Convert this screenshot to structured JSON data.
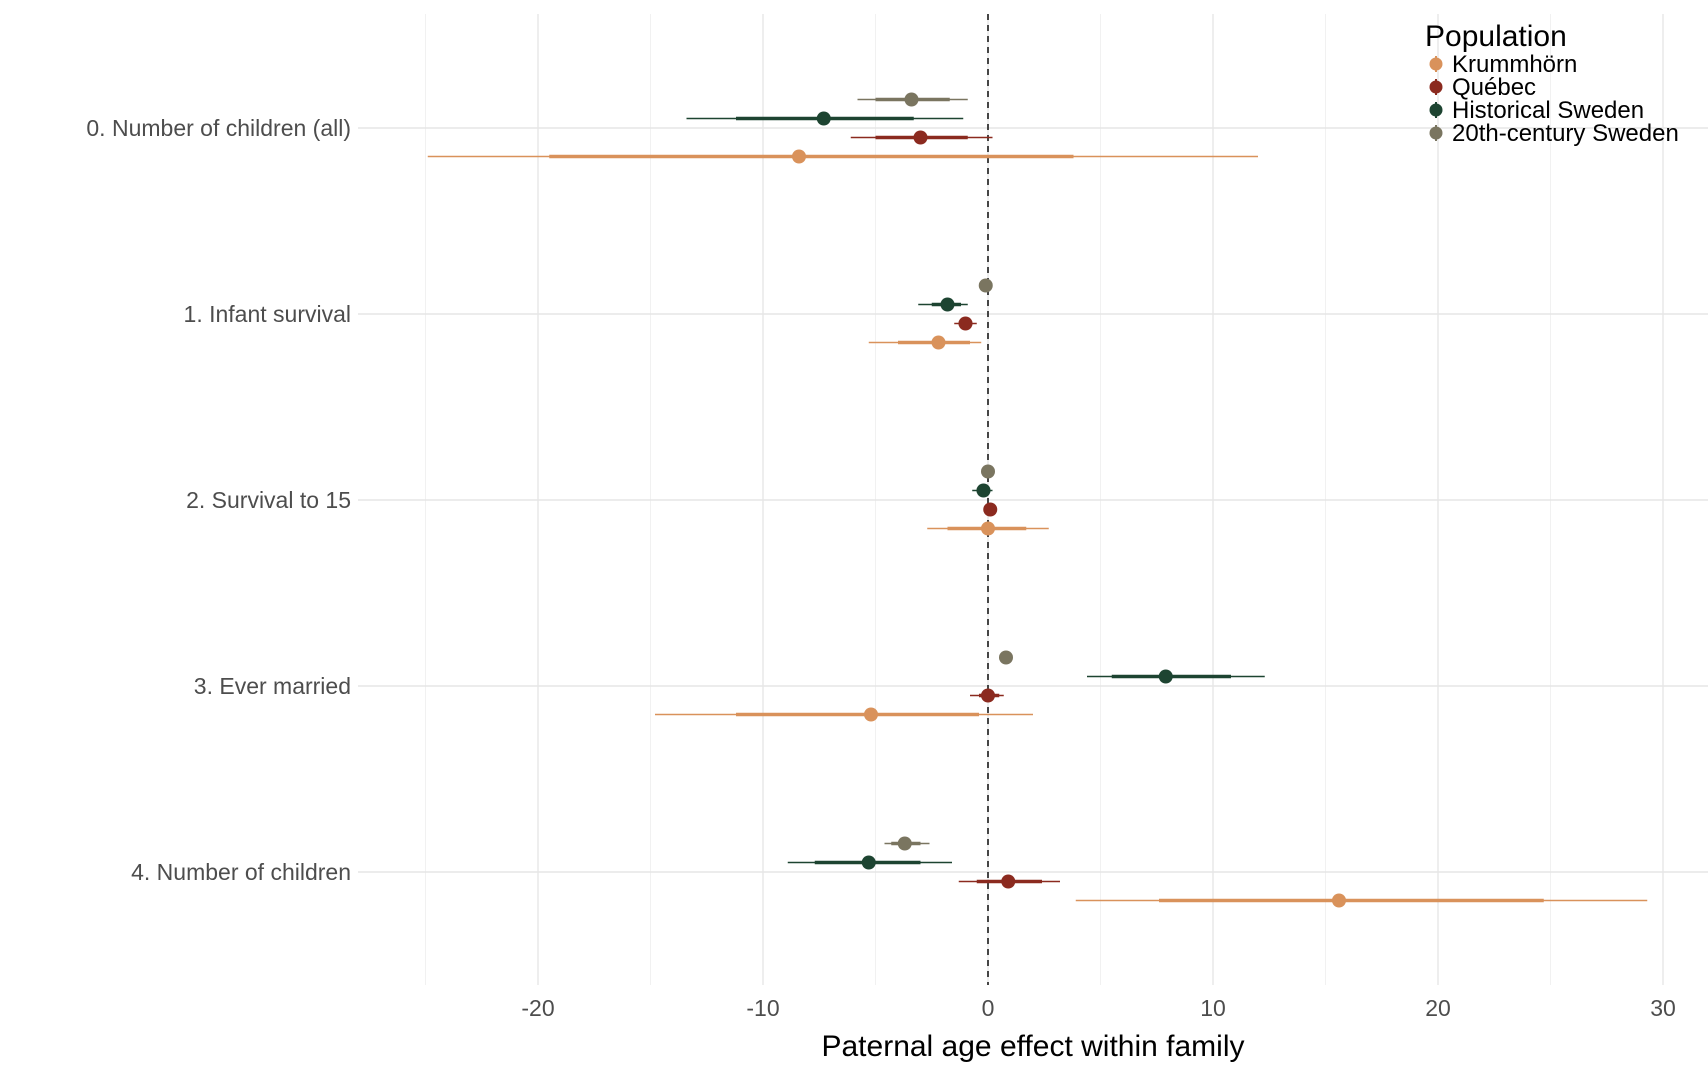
{
  "chart_data": {
    "type": "forest",
    "xlabel": "Paternal age effect within family",
    "xlim": [
      -28,
      32
    ],
    "xticks": [
      -20,
      -10,
      0,
      10,
      20,
      30
    ],
    "x_tick_labels": [
      "-20",
      "-10",
      "0",
      "10",
      "20",
      "30"
    ],
    "reference_line": 0,
    "grid": true,
    "categories": [
      "0. Number of children (all)",
      "1. Infant survival",
      "2. Survival to 15",
      "3. Ever married",
      "4. Number of children"
    ],
    "legend": {
      "title": "Population",
      "position": "top-right"
    },
    "series": [
      {
        "name": "Krummhörn",
        "color": "#D9925B",
        "values": [
          -8.4,
          -2.2,
          0.0,
          -5.2,
          15.6
        ],
        "inner": [
          [
            -19.5,
            3.8
          ],
          [
            -4.0,
            -0.8
          ],
          [
            -1.8,
            1.7
          ],
          [
            -11.2,
            -0.4
          ],
          [
            7.6,
            24.7
          ]
        ],
        "outer": [
          [
            -24.9,
            12.0
          ],
          [
            -5.3,
            -0.3
          ],
          [
            -2.7,
            2.7
          ],
          [
            -14.8,
            2.0
          ],
          [
            3.9,
            29.3
          ]
        ]
      },
      {
        "name": "Québec",
        "color": "#8B2A1F",
        "values": [
          -3.0,
          -1.0,
          0.1,
          0.0,
          0.9
        ],
        "inner": [
          [
            -5.0,
            -0.9
          ],
          [
            -1.3,
            -0.7
          ],
          [
            -0.1,
            0.2
          ],
          [
            -0.4,
            0.5
          ],
          [
            -0.5,
            2.4
          ]
        ],
        "outer": [
          [
            -6.1,
            0.2
          ],
          [
            -1.5,
            -0.5
          ],
          [
            -0.2,
            0.3
          ],
          [
            -0.8,
            0.7
          ],
          [
            -1.3,
            3.2
          ]
        ]
      },
      {
        "name": "Historical Sweden",
        "color": "#1D4431",
        "values": [
          -7.3,
          -1.8,
          -0.2,
          7.9,
          -5.3
        ],
        "inner": [
          [
            -11.2,
            -3.3
          ],
          [
            -2.5,
            -1.2
          ],
          [
            -0.5,
            0.1
          ],
          [
            5.5,
            10.8
          ],
          [
            -7.7,
            -3.0
          ]
        ],
        "outer": [
          [
            -13.4,
            -1.1
          ],
          [
            -3.1,
            -0.9
          ],
          [
            -0.7,
            0.2
          ],
          [
            4.4,
            12.3
          ],
          [
            -8.9,
            -1.6
          ]
        ]
      },
      {
        "name": "20th-century Sweden",
        "color": "#7A7560",
        "values": [
          -3.4,
          -0.1,
          0.0,
          0.8,
          -3.7
        ],
        "inner": [
          [
            -5.0,
            -1.7
          ],
          [
            -0.2,
            0.0
          ],
          [
            -0.1,
            0.1
          ],
          [
            0.7,
            0.9
          ],
          [
            -4.3,
            -3.0
          ]
        ],
        "outer": [
          [
            -5.8,
            -0.9
          ],
          [
            -0.3,
            0.1
          ],
          [
            -0.2,
            0.2
          ],
          [
            0.6,
            1.0
          ],
          [
            -4.6,
            -2.6
          ]
        ]
      }
    ]
  }
}
